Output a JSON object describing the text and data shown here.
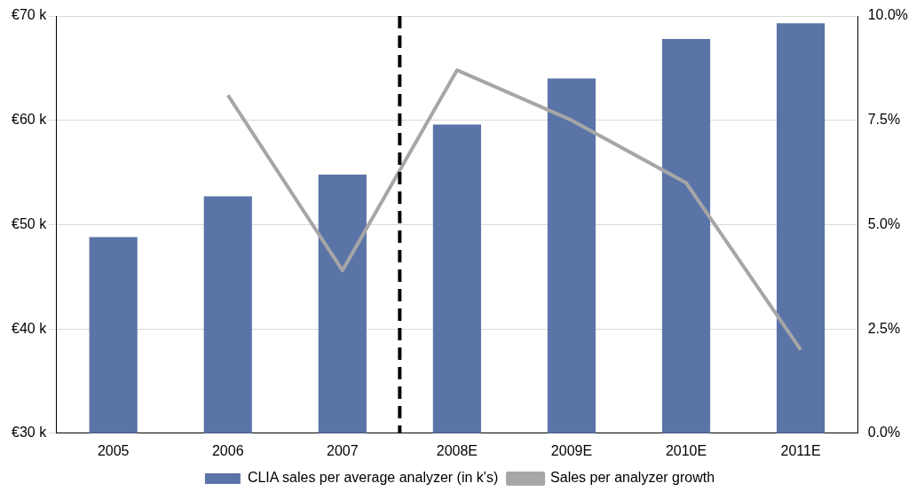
{
  "chart_data": {
    "type": "bar",
    "categories": [
      "2005",
      "2006",
      "2007",
      "2008E",
      "2009E",
      "2010E",
      "2011E"
    ],
    "series": [
      {
        "name": "CLIA sales per average analyzer (in k's)",
        "color": "#5b74a8",
        "values": [
          48.8,
          52.7,
          54.8,
          59.6,
          64.0,
          67.8,
          69.3
        ]
      },
      {
        "name": "Sales per analyzer growth",
        "type": "line",
        "axis": "y2",
        "color": "#a6a6a6",
        "values": [
          null,
          8.1,
          3.9,
          8.7,
          7.5,
          6.0,
          2.0
        ]
      }
    ],
    "ylim": [
      30,
      70
    ],
    "yticks": [
      {
        "value": 30,
        "label": "€30 k"
      },
      {
        "value": 40,
        "label": "€40 k"
      },
      {
        "value": 50,
        "label": "€50 k"
      },
      {
        "value": 60,
        "label": "€60 k"
      },
      {
        "value": 70,
        "label": "€70 k"
      }
    ],
    "y2lim": [
      0,
      10
    ],
    "y2ticks": [
      {
        "value": 0,
        "label": "0.0%"
      },
      {
        "value": 2.5,
        "label": "2.5%"
      },
      {
        "value": 5,
        "label": "5.0%"
      },
      {
        "value": 7.5,
        "label": "7.5%"
      },
      {
        "value": 10,
        "label": "10.0%"
      }
    ],
    "ref_lines": [
      {
        "axis": "x",
        "value": "2008E",
        "color": "#000000",
        "line_style": "dashed"
      }
    ],
    "grid": "y",
    "legend": "bottom",
    "marker": "none"
  }
}
